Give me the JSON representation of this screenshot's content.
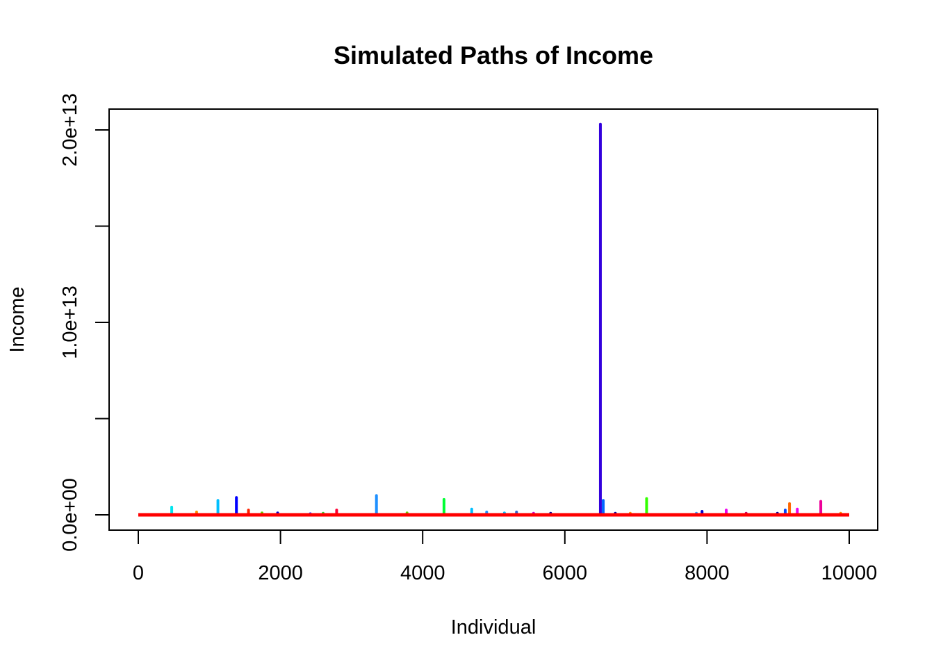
{
  "chart_data": {
    "type": "line",
    "title": "Simulated Paths of Income",
    "xlabel": "Individual",
    "ylabel": "Income",
    "xlim": [
      0,
      10000
    ],
    "ylim": [
      0,
      20000000000000.0
    ],
    "x_ticks": [
      0,
      2000,
      4000,
      6000,
      8000,
      10000
    ],
    "x_tick_labels": [
      "0",
      "2000",
      "4000",
      "6000",
      "8000",
      "10000"
    ],
    "y_ticks": [
      0,
      5000000000000.0,
      10000000000000.0,
      15000000000000.0,
      20000000000000.0
    ],
    "y_tick_labels": [
      "0.0e+00",
      "",
      "1.0e+13",
      "",
      "2.0e+13"
    ],
    "grid": false,
    "legend": "none",
    "baseline": {
      "name": "baseline",
      "color": "#ff0000",
      "value": 0
    },
    "spikes": [
      {
        "x": 470,
        "y": 400000000000.0,
        "color": "#00e5ee"
      },
      {
        "x": 820,
        "y": 150000000000.0,
        "color": "#ff8c00"
      },
      {
        "x": 1120,
        "y": 750000000000.0,
        "color": "#00bfff"
      },
      {
        "x": 1380,
        "y": 900000000000.0,
        "color": "#0000ff"
      },
      {
        "x": 1550,
        "y": 250000000000.0,
        "color": "#ff2200"
      },
      {
        "x": 1740,
        "y": 100000000000.0,
        "color": "#66cc00"
      },
      {
        "x": 1960,
        "y": 100000000000.0,
        "color": "#0000cc"
      },
      {
        "x": 2420,
        "y": 60000000000.0,
        "color": "#3333ff"
      },
      {
        "x": 2600,
        "y": 80000000000.0,
        "color": "#33cc33"
      },
      {
        "x": 2790,
        "y": 250000000000.0,
        "color": "#ff0033"
      },
      {
        "x": 3350,
        "y": 1000000000000.0,
        "color": "#1e90ff"
      },
      {
        "x": 3780,
        "y": 100000000000.0,
        "color": "#66cc00"
      },
      {
        "x": 4300,
        "y": 800000000000.0,
        "color": "#00ff33"
      },
      {
        "x": 4690,
        "y": 300000000000.0,
        "color": "#00bfff"
      },
      {
        "x": 4900,
        "y": 150000000000.0,
        "color": "#1e90ff"
      },
      {
        "x": 5150,
        "y": 100000000000.0,
        "color": "#00bfff"
      },
      {
        "x": 5320,
        "y": 150000000000.0,
        "color": "#3366cc"
      },
      {
        "x": 5560,
        "y": 80000000000.0,
        "color": "#cc00cc"
      },
      {
        "x": 5800,
        "y": 80000000000.0,
        "color": "#000099"
      },
      {
        "x": 6500,
        "y": 20300000000000.0,
        "color": "#3300dd"
      },
      {
        "x": 6540,
        "y": 750000000000.0,
        "color": "#0066ff"
      },
      {
        "x": 6710,
        "y": 80000000000.0,
        "color": "#000099"
      },
      {
        "x": 6920,
        "y": 80000000000.0,
        "color": "#ff8c00"
      },
      {
        "x": 7150,
        "y": 850000000000.0,
        "color": "#33ff00"
      },
      {
        "x": 7850,
        "y": 80000000000.0,
        "color": "#3399ff"
      },
      {
        "x": 7930,
        "y": 180000000000.0,
        "color": "#0000cc"
      },
      {
        "x": 8270,
        "y": 250000000000.0,
        "color": "#ee00ee"
      },
      {
        "x": 8550,
        "y": 80000000000.0,
        "color": "#cc0066"
      },
      {
        "x": 8990,
        "y": 80000000000.0,
        "color": "#000099"
      },
      {
        "x": 9100,
        "y": 250000000000.0,
        "color": "#0044ff"
      },
      {
        "x": 9160,
        "y": 580000000000.0,
        "color": "#ff6600"
      },
      {
        "x": 9270,
        "y": 300000000000.0,
        "color": "#ee00ee"
      },
      {
        "x": 9600,
        "y": 700000000000.0,
        "color": "#ee0099"
      },
      {
        "x": 9880,
        "y": 80000000000.0,
        "color": "#ff8c00"
      }
    ]
  }
}
